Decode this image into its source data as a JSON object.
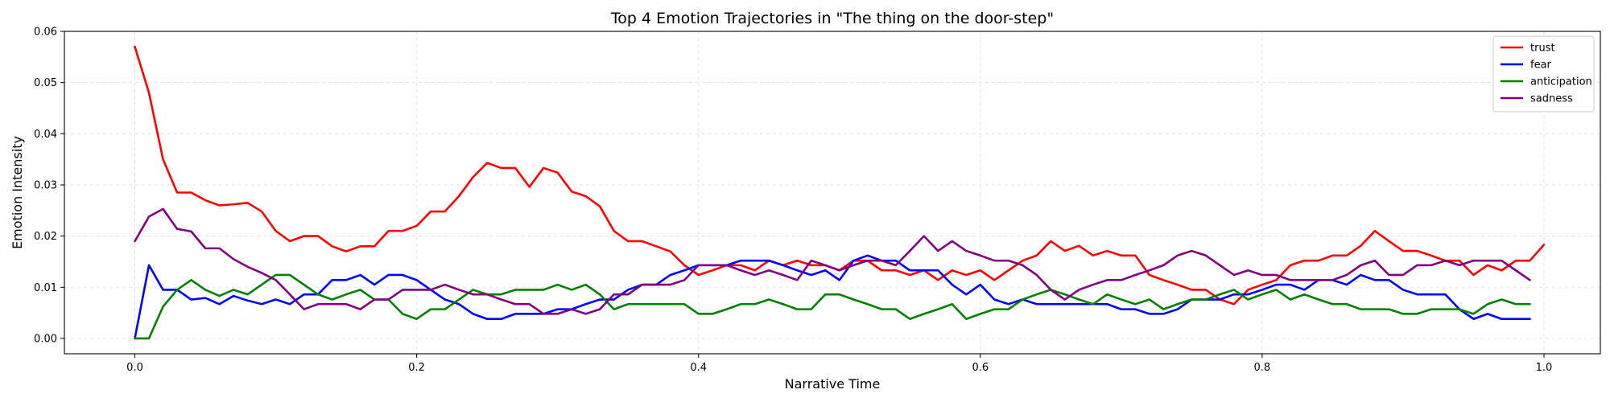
{
  "chart_data": {
    "type": "line",
    "title": "Top 4 Emotion Trajectories in \"The thing on the door-step\"",
    "xlabel": "Narrative Time",
    "ylabel": "Emotion Intensity",
    "xlim": [
      -0.05,
      1.04
    ],
    "ylim": [
      -0.003,
      0.06
    ],
    "xticks": [
      0.0,
      0.2,
      0.4,
      0.6,
      0.8,
      1.0
    ],
    "xtick_labels": [
      "0.0",
      "0.2",
      "0.4",
      "0.6",
      "0.8",
      "1.0"
    ],
    "yticks": [
      0.0,
      0.01,
      0.02,
      0.03,
      0.04,
      0.05,
      0.06
    ],
    "ytick_labels": [
      "0.00",
      "0.01",
      "0.02",
      "0.03",
      "0.04",
      "0.05",
      "0.06"
    ],
    "grid": true,
    "legend_position": "top-right",
    "x": {
      "start": 0.0,
      "step": 0.01,
      "count": 100
    },
    "series": [
      {
        "name": "trust",
        "color": "#ff0000",
        "values": [
          0.057,
          0.048,
          0.035,
          0.0285,
          0.0285,
          0.027,
          0.026,
          0.0262,
          0.0265,
          0.0248,
          0.021,
          0.019,
          0.02,
          0.02,
          0.018,
          0.017,
          0.018,
          0.018,
          0.021,
          0.021,
          0.022,
          0.0248,
          0.0248,
          0.0278,
          0.0315,
          0.0343,
          0.0333,
          0.0333,
          0.0296,
          0.0333,
          0.0324,
          0.0287,
          0.0278,
          0.0258,
          0.021,
          0.019,
          0.019,
          0.018,
          0.017,
          0.0143,
          0.0124,
          0.0133,
          0.0143,
          0.0143,
          0.0133,
          0.0152,
          0.0143,
          0.0152,
          0.0143,
          0.0143,
          0.0133,
          0.0152,
          0.0152,
          0.0133,
          0.0133,
          0.0124,
          0.0133,
          0.0114,
          0.0133,
          0.0124,
          0.0133,
          0.0114,
          0.0133,
          0.0152,
          0.0162,
          0.019,
          0.0171,
          0.0181,
          0.0162,
          0.0171,
          0.0162,
          0.0162,
          0.0124,
          0.0114,
          0.0105,
          0.0095,
          0.0095,
          0.0076,
          0.0067,
          0.0095,
          0.0105,
          0.0114,
          0.0143,
          0.0152,
          0.0152,
          0.0162,
          0.0162,
          0.0181,
          0.021,
          0.019,
          0.0171,
          0.0171,
          0.0162,
          0.0152,
          0.0152,
          0.0124,
          0.0143,
          0.0133,
          0.0152,
          0.0152,
          0.0183
        ]
      },
      {
        "name": "fear",
        "color": "#0000ff",
        "values": [
          0.0,
          0.0143,
          0.0095,
          0.0095,
          0.0076,
          0.0079,
          0.0067,
          0.0083,
          0.0074,
          0.0067,
          0.0076,
          0.0067,
          0.0086,
          0.0086,
          0.0114,
          0.0114,
          0.0124,
          0.0105,
          0.0124,
          0.0124,
          0.0114,
          0.0095,
          0.0076,
          0.0067,
          0.0048,
          0.0038,
          0.0038,
          0.0048,
          0.0048,
          0.0048,
          0.0057,
          0.0057,
          0.0067,
          0.0076,
          0.0076,
          0.0095,
          0.0105,
          0.0105,
          0.0124,
          0.0133,
          0.0143,
          0.0143,
          0.0143,
          0.0152,
          0.0152,
          0.0152,
          0.0143,
          0.0133,
          0.0124,
          0.0133,
          0.0114,
          0.0152,
          0.0162,
          0.0152,
          0.0152,
          0.0133,
          0.0133,
          0.0133,
          0.0105,
          0.0086,
          0.0105,
          0.0076,
          0.0067,
          0.0076,
          0.0067,
          0.0067,
          0.0067,
          0.0067,
          0.0067,
          0.0067,
          0.0057,
          0.0057,
          0.0048,
          0.0048,
          0.0057,
          0.0076,
          0.0076,
          0.0076,
          0.0086,
          0.0086,
          0.0095,
          0.0105,
          0.0105,
          0.0095,
          0.0114,
          0.0114,
          0.0105,
          0.0124,
          0.0114,
          0.0114,
          0.0095,
          0.0086,
          0.0086,
          0.0086,
          0.0057,
          0.0038,
          0.0048,
          0.0038,
          0.0038,
          0.0038
        ]
      },
      {
        "name": "anticipation",
        "color": "#008000",
        "values": [
          0.0,
          0.0,
          0.0062,
          0.0095,
          0.0114,
          0.0095,
          0.0083,
          0.0095,
          0.0086,
          0.0105,
          0.0124,
          0.0124,
          0.0105,
          0.0086,
          0.0076,
          0.0086,
          0.0095,
          0.0076,
          0.0076,
          0.0048,
          0.0038,
          0.0057,
          0.0057,
          0.0076,
          0.0095,
          0.0086,
          0.0086,
          0.0095,
          0.0095,
          0.0095,
          0.0105,
          0.0095,
          0.0105,
          0.0086,
          0.0057,
          0.0067,
          0.0067,
          0.0067,
          0.0067,
          0.0067,
          0.0048,
          0.0048,
          0.0057,
          0.0067,
          0.0067,
          0.0076,
          0.0067,
          0.0057,
          0.0057,
          0.0086,
          0.0086,
          0.0076,
          0.0067,
          0.0057,
          0.0057,
          0.0038,
          0.0048,
          0.0057,
          0.0067,
          0.0038,
          0.0048,
          0.0057,
          0.0057,
          0.0076,
          0.0086,
          0.0095,
          0.0086,
          0.0076,
          0.0067,
          0.0086,
          0.0076,
          0.0067,
          0.0076,
          0.0057,
          0.0067,
          0.0076,
          0.0076,
          0.0086,
          0.0095,
          0.0076,
          0.0086,
          0.0095,
          0.0076,
          0.0086,
          0.0076,
          0.0067,
          0.0067,
          0.0057,
          0.0057,
          0.0057,
          0.0048,
          0.0048,
          0.0057,
          0.0057,
          0.0057,
          0.0048,
          0.0067,
          0.0076,
          0.0067,
          0.0067
        ]
      },
      {
        "name": "sadness",
        "color": "#800080",
        "values": [
          0.019,
          0.0238,
          0.0253,
          0.0214,
          0.0209,
          0.0176,
          0.0176,
          0.0155,
          0.014,
          0.0128,
          0.0114,
          0.0086,
          0.0057,
          0.0067,
          0.0067,
          0.0067,
          0.0057,
          0.0076,
          0.0076,
          0.0095,
          0.0095,
          0.0095,
          0.0105,
          0.0095,
          0.0086,
          0.0086,
          0.0076,
          0.0067,
          0.0067,
          0.0048,
          0.0048,
          0.0057,
          0.0048,
          0.0057,
          0.0086,
          0.0086,
          0.0105,
          0.0105,
          0.0105,
          0.0114,
          0.0143,
          0.0143,
          0.0143,
          0.0133,
          0.0124,
          0.0133,
          0.0124,
          0.0114,
          0.0152,
          0.0143,
          0.0133,
          0.0143,
          0.0152,
          0.0152,
          0.0143,
          0.0171,
          0.02,
          0.0171,
          0.019,
          0.0171,
          0.0162,
          0.0152,
          0.0152,
          0.0143,
          0.0124,
          0.0095,
          0.0076,
          0.0095,
          0.0105,
          0.0114,
          0.0114,
          0.0124,
          0.0133,
          0.0143,
          0.0162,
          0.0171,
          0.0162,
          0.0143,
          0.0124,
          0.0133,
          0.0124,
          0.0124,
          0.0114,
          0.0114,
          0.0114,
          0.0114,
          0.0124,
          0.0143,
          0.0152,
          0.0124,
          0.0124,
          0.0143,
          0.0143,
          0.0152,
          0.0143,
          0.0152,
          0.0152,
          0.0152,
          0.0133,
          0.0114
        ]
      }
    ]
  }
}
